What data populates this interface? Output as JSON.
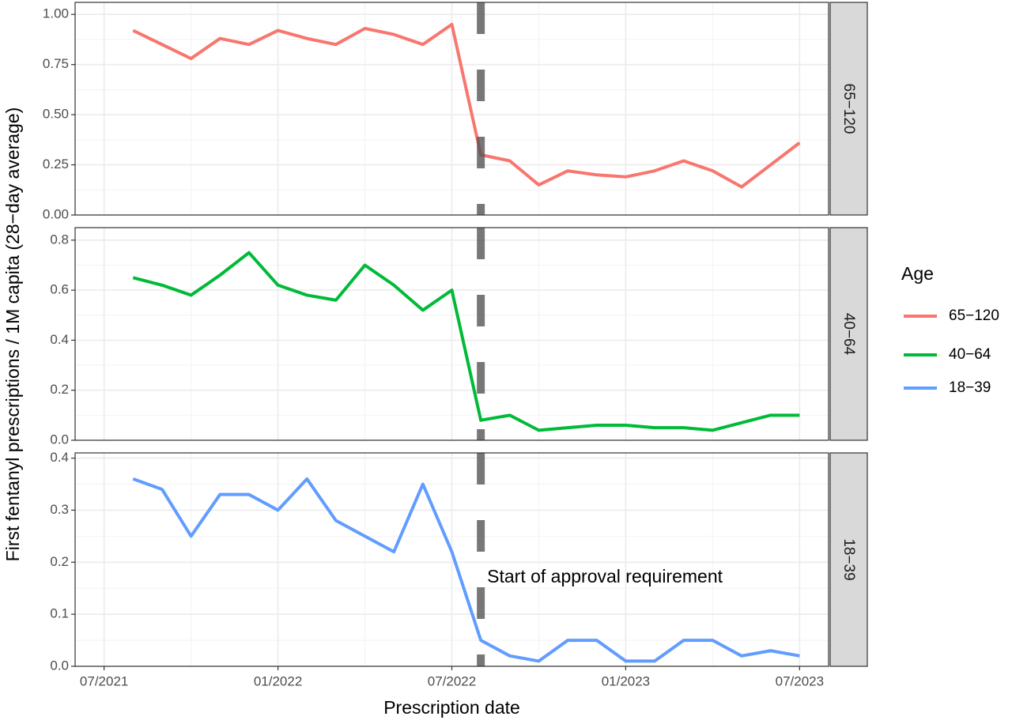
{
  "chart_data": [
    {
      "type": "line",
      "ylabel": "First fentanyl prescriptions / 1M capita (28−day average)",
      "legend_title": "Age",
      "x": [
        "08/2021",
        "09/2021",
        "10/2021",
        "11/2021",
        "12/2021",
        "01/2022",
        "02/2022",
        "03/2022",
        "04/2022",
        "05/2022",
        "06/2022",
        "07/2022",
        "08/2022",
        "09/2022",
        "10/2022",
        "11/2022",
        "12/2022",
        "01/2023",
        "02/2023",
        "03/2023",
        "04/2023",
        "05/2023",
        "06/2023",
        "07/2023"
      ],
      "series": [
        {
          "name": "65−120",
          "color": "#F8766D",
          "values": [
            0.92,
            0.85,
            0.78,
            0.88,
            0.85,
            0.92,
            0.88,
            0.85,
            0.93,
            0.9,
            0.85,
            0.95,
            0.3,
            0.27,
            0.15,
            0.22,
            0.2,
            0.19,
            0.22,
            0.27,
            0.22,
            0.14,
            0.25,
            0.36
          ]
        }
      ],
      "xlim": [
        "06/2021",
        "08/2023"
      ],
      "xticks": [
        "07/2021",
        "01/2022",
        "07/2022",
        "01/2023",
        "07/2023"
      ],
      "ylim": [
        0,
        1.06
      ],
      "yticks": [
        {
          "value": 0,
          "label": "0.00"
        },
        {
          "value": 0.25,
          "label": "0.25"
        },
        {
          "value": 0.5,
          "label": "0.50"
        },
        {
          "value": 0.75,
          "label": "0.75"
        },
        {
          "value": 1,
          "label": "1.00"
        }
      ],
      "grid": true,
      "vline": "08/2022"
    },
    {
      "type": "line",
      "x": [
        "08/2021",
        "09/2021",
        "10/2021",
        "11/2021",
        "12/2021",
        "01/2022",
        "02/2022",
        "03/2022",
        "04/2022",
        "05/2022",
        "06/2022",
        "07/2022",
        "08/2022",
        "09/2022",
        "10/2022",
        "11/2022",
        "12/2022",
        "01/2023",
        "02/2023",
        "03/2023",
        "04/2023",
        "05/2023",
        "06/2023",
        "07/2023"
      ],
      "series": [
        {
          "name": "40−64",
          "color": "#00BA38",
          "values": [
            0.65,
            0.62,
            0.58,
            0.66,
            0.75,
            0.62,
            0.58,
            0.56,
            0.7,
            0.62,
            0.52,
            0.6,
            0.08,
            0.1,
            0.04,
            0.05,
            0.06,
            0.06,
            0.05,
            0.05,
            0.04,
            0.07,
            0.1,
            0.1
          ]
        }
      ],
      "xlim": [
        "06/2021",
        "08/2023"
      ],
      "xticks": [
        "07/2021",
        "01/2022",
        "07/2022",
        "01/2023",
        "07/2023"
      ],
      "ylim": [
        0,
        0.85
      ],
      "yticks": [
        {
          "value": 0,
          "label": "0.0"
        },
        0.2,
        0.4,
        0.6,
        0.8
      ],
      "grid": true,
      "vline": "08/2022"
    },
    {
      "type": "line",
      "xlabel": "Prescription date",
      "annotation": "Start of approval requirement",
      "x": [
        "08/2021",
        "09/2021",
        "10/2021",
        "11/2021",
        "12/2021",
        "01/2022",
        "02/2022",
        "03/2022",
        "04/2022",
        "05/2022",
        "06/2022",
        "07/2022",
        "08/2022",
        "09/2022",
        "10/2022",
        "11/2022",
        "12/2022",
        "01/2023",
        "02/2023",
        "03/2023",
        "04/2023",
        "05/2023",
        "06/2023",
        "07/2023"
      ],
      "series": [
        {
          "name": "18−39",
          "color": "#619CFF",
          "values": [
            0.36,
            0.34,
            0.25,
            0.33,
            0.33,
            0.3,
            0.36,
            0.28,
            0.25,
            0.22,
            0.35,
            0.22,
            0.05,
            0.02,
            0.01,
            0.05,
            0.05,
            0.01,
            0.01,
            0.05,
            0.05,
            0.02,
            0.03,
            0.02
          ]
        }
      ],
      "xlim": [
        "06/2021",
        "08/2023"
      ],
      "xticks": [
        "07/2021",
        "01/2022",
        "07/2022",
        "01/2023",
        "07/2023"
      ],
      "ylim": [
        0,
        0.41
      ],
      "yticks": [
        {
          "value": 0,
          "label": "0.0"
        },
        0.1,
        0.2,
        0.3,
        0.4
      ],
      "grid": true,
      "vline": "08/2022"
    }
  ]
}
